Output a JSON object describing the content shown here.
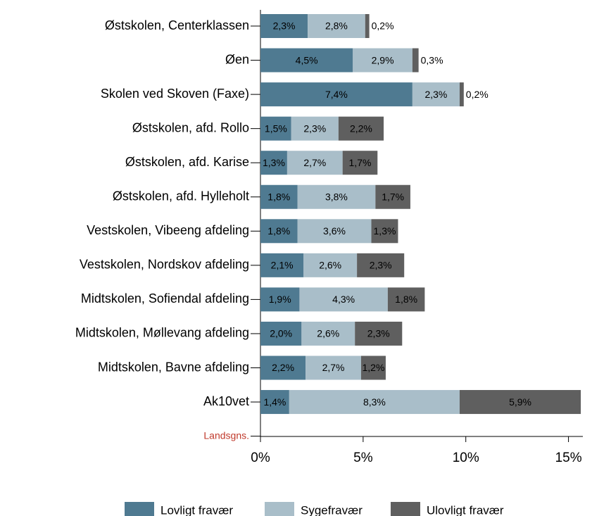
{
  "chart_data": {
    "type": "stacked-barh",
    "categories": [
      "Østskolen, Centerklassen",
      "Øen",
      "Skolen ved Skoven (Faxe)",
      "Østskolen, afd. Rollo",
      "Østskolen, afd. Karise",
      "Østskolen, afd. Hylleholt",
      "Vestskolen, Vibeeng afdeling",
      "Vestskolen, Nordskov afdeling",
      "Midtskolen, Sofiendal afdeling",
      "Midtskolen, Møllevang afdeling",
      "Midtskolen, Bavne afdeling",
      "Ak10vet",
      "Landsgns."
    ],
    "category_label_colors": [
      "#000000",
      "#000000",
      "#000000",
      "#000000",
      "#000000",
      "#000000",
      "#000000",
      "#000000",
      "#000000",
      "#000000",
      "#000000",
      "#000000",
      "#c0392b"
    ],
    "series": [
      {
        "name": "Lovligt fravær",
        "color": "#4f7a91",
        "values": [
          2.3,
          4.5,
          7.4,
          1.5,
          1.3,
          1.8,
          1.8,
          2.1,
          1.9,
          2.0,
          2.2,
          1.4,
          null
        ],
        "value_labels": [
          "2,3%",
          "4,5%",
          "7,4%",
          "1,5%",
          "1,3%",
          "1,8%",
          "1,8%",
          "2,1%",
          "1,9%",
          "2,0%",
          "2,2%",
          "1,4%",
          null
        ]
      },
      {
        "name": "Sygefravær",
        "color": "#a9bec9",
        "values": [
          2.8,
          2.9,
          2.3,
          2.3,
          2.7,
          3.8,
          3.6,
          2.6,
          4.3,
          2.6,
          2.7,
          8.3,
          null
        ],
        "value_labels": [
          "2,8%",
          "2,9%",
          "2,3%",
          "2,3%",
          "2,7%",
          "3,8%",
          "3,6%",
          "2,6%",
          "4,3%",
          "2,6%",
          "2,7%",
          "8,3%",
          null
        ]
      },
      {
        "name": "Ulovligt fravær",
        "color": "#5f5f5f",
        "values": [
          0.2,
          0.3,
          0.2,
          2.2,
          1.7,
          1.7,
          1.3,
          2.3,
          1.8,
          2.3,
          1.2,
          5.9,
          null
        ],
        "value_labels": [
          "0,2%",
          "0,3%",
          "0,2%",
          "2,2%",
          "1,7%",
          "1,7%",
          "1,3%",
          "2,3%",
          "1,8%",
          "2,3%",
          "1,2%",
          "5,9%",
          null
        ]
      }
    ],
    "xlim": [
      0,
      15.7
    ],
    "xticks": [
      {
        "value": 0,
        "label": "0%"
      },
      {
        "value": 5,
        "label": "5%"
      },
      {
        "value": 10,
        "label": "10%"
      },
      {
        "value": 15,
        "label": "15%"
      }
    ],
    "legend": "bottom"
  }
}
